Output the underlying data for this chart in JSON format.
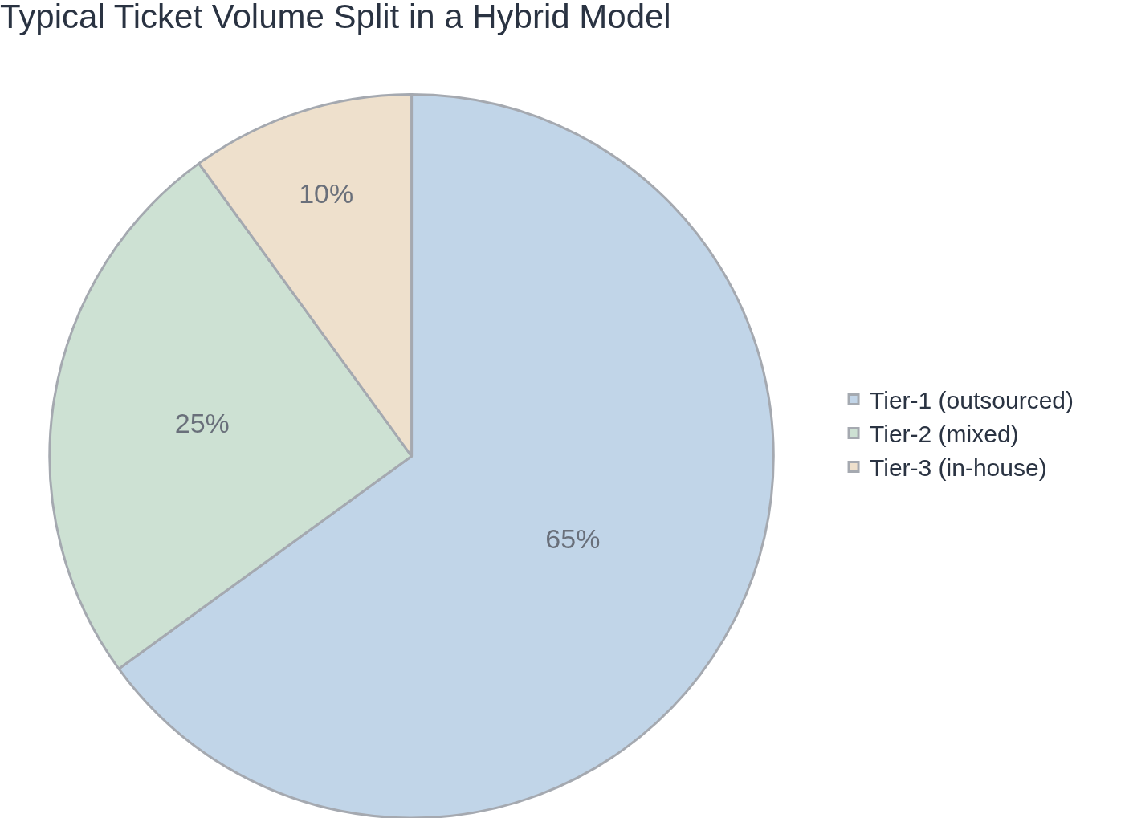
{
  "chart_data": {
    "type": "pie",
    "title": "Typical Ticket Volume Split in a Hybrid Model",
    "categories": [
      "Tier-1 (outsourced)",
      "Tier-2 (mixed)",
      "Tier-3 (in-house)"
    ],
    "values": [
      65,
      25,
      10
    ],
    "colors": [
      "#a8c4df",
      "#b8d5c1",
      "#e8d3b7"
    ],
    "value_labels": [
      "65%",
      "25%",
      "10%"
    ],
    "legend": "right"
  }
}
